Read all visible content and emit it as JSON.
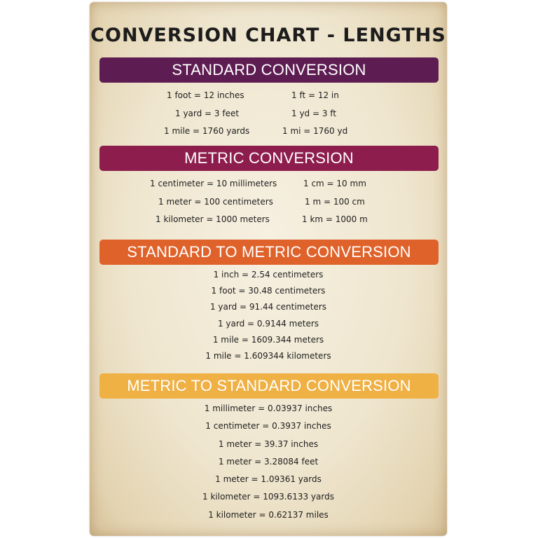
{
  "title": "CONVERSION CHART - LENGTHS",
  "sections": [
    {
      "heading": "STANDARD CONVERSION",
      "color": "#5e1d52",
      "rows": [
        [
          "1 foot = 12 inches",
          "1 ft = 12 in"
        ],
        [
          "1 yard = 3 feet",
          "1 yd = 3 ft"
        ],
        [
          "1 mile = 1760 yards",
          "1 mi = 1760 yd"
        ]
      ]
    },
    {
      "heading": "METRIC CONVERSION",
      "color": "#8d1d4d",
      "rows": [
        [
          "1 centimeter = 10 millimeters",
          "1 cm = 10 mm"
        ],
        [
          "1 meter = 100 centimeters",
          "1 m = 100 cm"
        ],
        [
          "1 kilometer = 1000 meters",
          "1 km = 1000 m"
        ]
      ]
    },
    {
      "heading": "STANDARD TO METRIC CONVERSION",
      "color": "#e0622b",
      "rows": [
        "1 inch = 2.54 centimeters",
        "1 foot = 30.48 centimeters",
        "1 yard = 91.44 centimeters",
        "1 yard = 0.9144 meters",
        "1 mile = 1609.344 meters",
        "1 mile = 1.609344 kilometers"
      ]
    },
    {
      "heading": "METRIC TO STANDARD CONVERSION",
      "color": "#efb044",
      "rows": [
        "1 millimeter = 0.03937 inches",
        "1 centimeter = 0.3937 inches",
        "1 meter = 39.37 inches",
        "1 meter = 3.28084 feet",
        "1 meter = 1.09361 yards",
        "1 kilometer = 1093.6133 yards",
        "1 kilometer = 0.62137 miles"
      ]
    }
  ]
}
